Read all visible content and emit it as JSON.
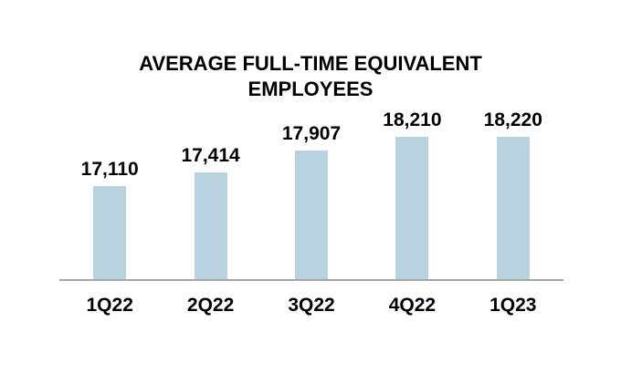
{
  "chart_data": {
    "type": "bar",
    "title": "AVERAGE FULL-TIME EQUIVALENT EMPLOYEES",
    "categories": [
      "1Q22",
      "2Q22",
      "3Q22",
      "4Q22",
      "1Q23"
    ],
    "values": [
      17110,
      17414,
      17907,
      18210,
      18220
    ],
    "value_labels": [
      "17,110",
      "17,414",
      "17,907",
      "18,210",
      "18,220"
    ],
    "xlabel": "",
    "ylabel": "",
    "ylim": [
      15000,
      18500
    ],
    "grid": false,
    "legend": false,
    "data_labels_position": "above-bars",
    "bar_color": "#b8d3df",
    "axis_line_color": "#a6a6a6",
    "text_color": "#000000",
    "background_color": "#ffffff"
  }
}
